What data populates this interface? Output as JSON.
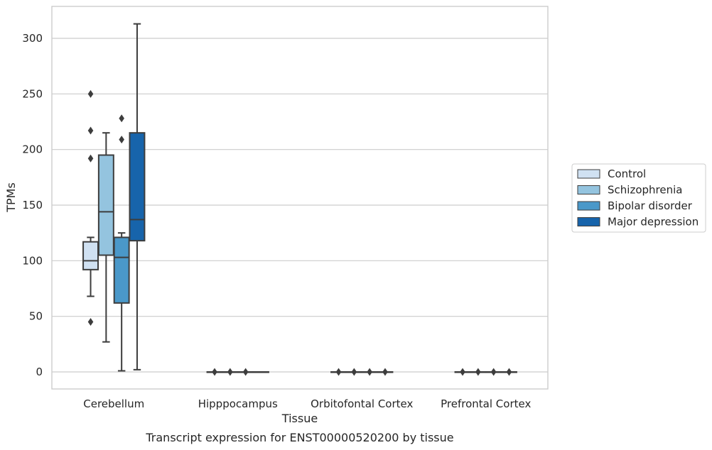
{
  "chart_data": {
    "type": "box",
    "xlabel": "Tissue",
    "ylabel": "TPMs",
    "caption": "Transcript expression for ENST00000520200 by tissue",
    "ylim": [
      -15,
      330
    ],
    "yticks": [
      0,
      50,
      100,
      150,
      200,
      250,
      300
    ],
    "grid": "horizontal",
    "legend_position": "right",
    "categories": [
      "Cerebellum",
      "Hipppocampus",
      "Orbitofontal Cortex",
      "Prefrontal Cortex"
    ],
    "series": [
      {
        "name": "Control",
        "color": "#d0e1f2",
        "boxes": [
          {
            "whislo": 68,
            "q1": 92,
            "med": 100,
            "q3": 117,
            "whishi": 121,
            "fliers": [
              250,
              217,
              192,
              45
            ]
          },
          {
            "whislo": 0,
            "q1": 0,
            "med": 0,
            "q3": 0,
            "whishi": 0,
            "fliers": [
              0
            ]
          },
          {
            "whislo": 0,
            "q1": 0,
            "med": 0,
            "q3": 0,
            "whishi": 0,
            "fliers": [
              0
            ]
          },
          {
            "whislo": 0,
            "q1": 0,
            "med": 0,
            "q3": 0,
            "whishi": 0,
            "fliers": [
              0
            ]
          }
        ]
      },
      {
        "name": "Schizophrenia",
        "color": "#94c4df",
        "boxes": [
          {
            "whislo": 27,
            "q1": 105,
            "med": 144,
            "q3": 195,
            "whishi": 215,
            "fliers": []
          },
          {
            "whislo": 0,
            "q1": 0,
            "med": 0,
            "q3": 0,
            "whishi": 0,
            "fliers": [
              0
            ]
          },
          {
            "whislo": 0,
            "q1": 0,
            "med": 0,
            "q3": 0,
            "whishi": 0,
            "fliers": [
              0
            ]
          },
          {
            "whislo": 0,
            "q1": 0,
            "med": 0,
            "q3": 0,
            "whishi": 0,
            "fliers": [
              0
            ]
          }
        ]
      },
      {
        "name": "Bipolar disorder",
        "color": "#4a98c9",
        "boxes": [
          {
            "whislo": 1,
            "q1": 62,
            "med": 103,
            "q3": 121,
            "whishi": 125,
            "fliers": [
              228,
              209
            ]
          },
          {
            "whislo": 0,
            "q1": 0,
            "med": 0,
            "q3": 0,
            "whishi": 0,
            "fliers": [
              0
            ]
          },
          {
            "whislo": 0,
            "q1": 0,
            "med": 0,
            "q3": 0,
            "whishi": 0,
            "fliers": [
              0
            ]
          },
          {
            "whislo": 0,
            "q1": 0,
            "med": 0,
            "q3": 0,
            "whishi": 0,
            "fliers": [
              0
            ]
          }
        ]
      },
      {
        "name": "Major depression",
        "color": "#1764ab",
        "boxes": [
          {
            "whislo": 2,
            "q1": 118,
            "med": 137,
            "q3": 215,
            "whishi": 313,
            "fliers": []
          },
          {
            "whislo": 0,
            "q1": 0,
            "med": 0,
            "q3": 0,
            "whishi": 0,
            "fliers": []
          },
          {
            "whislo": 0,
            "q1": 0,
            "med": 0,
            "q3": 0,
            "whishi": 0,
            "fliers": [
              0
            ]
          },
          {
            "whislo": 0,
            "q1": 0,
            "med": 0,
            "q3": 0,
            "whishi": 0,
            "fliers": [
              0
            ]
          }
        ]
      }
    ]
  }
}
